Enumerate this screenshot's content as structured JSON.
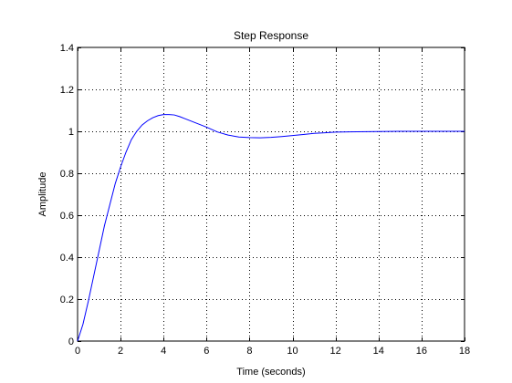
{
  "chart_data": {
    "type": "line",
    "title": "Step Response",
    "xlabel": "Time (seconds)",
    "ylabel": "Amplitude",
    "xlim": [
      0,
      18
    ],
    "ylim": [
      0,
      1.4
    ],
    "x_ticks": [
      0,
      2,
      4,
      6,
      8,
      10,
      12,
      14,
      16,
      18
    ],
    "y_ticks": [
      0,
      0.2,
      0.4,
      0.6,
      0.8,
      1,
      1.2,
      1.4
    ],
    "x_tick_labels": [
      "0",
      "2",
      "4",
      "6",
      "8",
      "10",
      "12",
      "14",
      "16",
      "18"
    ],
    "y_tick_labels": [
      "0",
      "0.2",
      "0.4",
      "0.6",
      "0.8",
      "1",
      "1.2",
      "1.4"
    ],
    "grid": true,
    "line_color": "#0000ff",
    "series": [
      {
        "x": [
          0,
          0.25,
          0.5,
          0.75,
          1,
          1.25,
          1.5,
          1.75,
          2,
          2.25,
          2.5,
          2.75,
          3,
          3.25,
          3.5,
          3.75,
          4,
          4.25,
          4.5,
          4.75,
          5,
          5.5,
          6,
          6.5,
          7,
          7.5,
          8,
          8.5,
          9,
          9.5,
          10,
          10.5,
          11,
          11.5,
          12,
          13,
          14,
          15,
          16,
          17,
          18
        ],
        "y": [
          0,
          0.08,
          0.19,
          0.31,
          0.43,
          0.55,
          0.65,
          0.75,
          0.83,
          0.9,
          0.96,
          1.0,
          1.03,
          1.05,
          1.065,
          1.075,
          1.08,
          1.08,
          1.078,
          1.07,
          1.06,
          1.04,
          1.02,
          0.997,
          0.982,
          0.973,
          0.97,
          0.969,
          0.971,
          0.975,
          0.98,
          0.985,
          0.99,
          0.993,
          0.996,
          0.998,
          0.999,
          1.0,
          1.0,
          1.0,
          1.0
        ]
      }
    ]
  }
}
